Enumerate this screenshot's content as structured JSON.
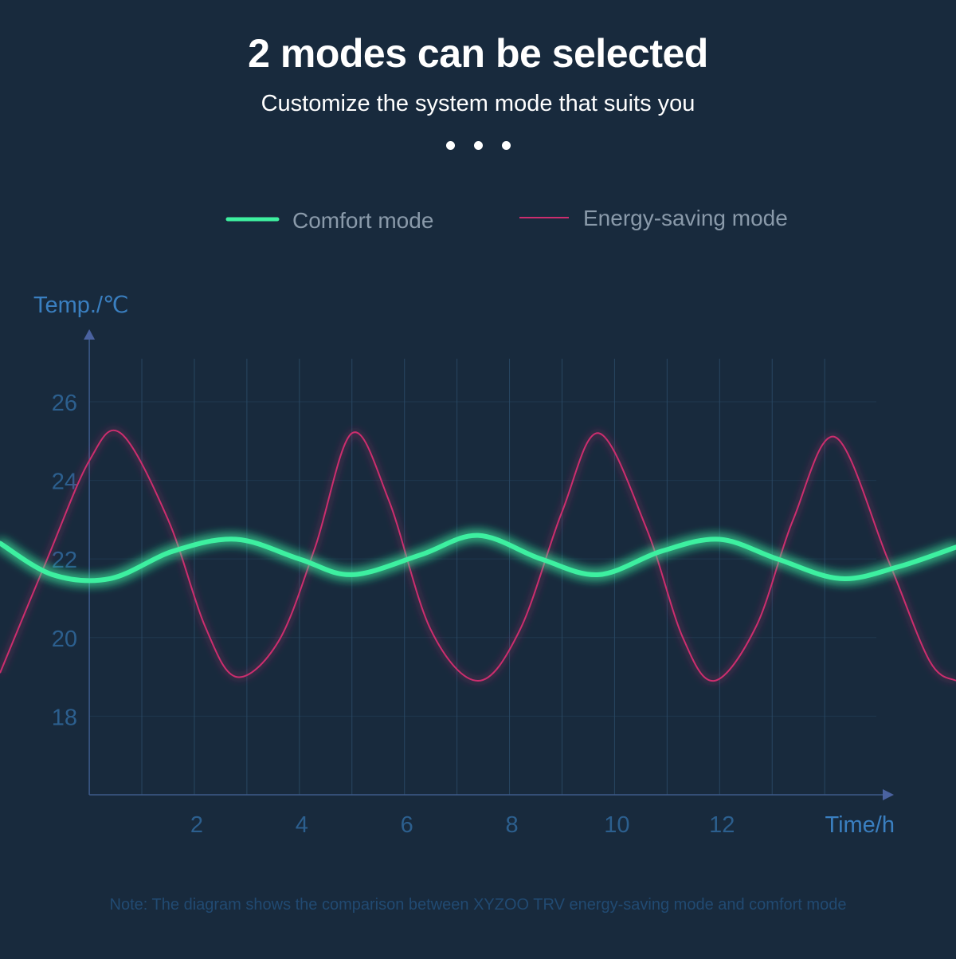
{
  "header": {
    "title": "2 modes can be selected",
    "subtitle": "Customize the system mode that suits you"
  },
  "colors": {
    "background": "#182a3d",
    "comfort": "#3ef0a0",
    "energy": "#cc2d6e",
    "axis_text": "#2c5f8e",
    "axis_label": "#3a7fc0",
    "grid": "#2a4a66"
  },
  "note": "Note: The diagram shows the comparison between XYZOO TRV energy-saving mode and comfort mode",
  "chart_data": {
    "type": "line",
    "ylabel": "Temp./℃",
    "xlabel": "Time/h",
    "xlim": [
      -1.7,
      16.5
    ],
    "ylim": [
      16,
      27.5
    ],
    "x_ticks": [
      2,
      4,
      6,
      8,
      10,
      12
    ],
    "y_ticks": [
      18,
      20,
      22,
      24,
      26
    ],
    "legend_position": "top-center",
    "series": [
      {
        "name": "Comfort mode",
        "color": "#3ef0a0",
        "points": [
          [
            -1.7,
            22.4
          ],
          [
            -0.7,
            21.6
          ],
          [
            0.4,
            21.5
          ],
          [
            1.6,
            22.2
          ],
          [
            2.8,
            22.5
          ],
          [
            4.0,
            22.0
          ],
          [
            5.0,
            21.6
          ],
          [
            6.3,
            22.1
          ],
          [
            7.4,
            22.6
          ],
          [
            8.6,
            22.0
          ],
          [
            9.7,
            21.6
          ],
          [
            10.9,
            22.2
          ],
          [
            12.0,
            22.5
          ],
          [
            13.1,
            22.0
          ],
          [
            14.3,
            21.5
          ],
          [
            15.4,
            21.8
          ],
          [
            16.5,
            22.3
          ]
        ]
      },
      {
        "name": "Energy-saving mode",
        "color": "#cc2d6e",
        "points": [
          [
            -1.7,
            19.1
          ],
          [
            -0.8,
            22.0
          ],
          [
            0.0,
            24.5
          ],
          [
            0.6,
            25.2
          ],
          [
            1.5,
            23.0
          ],
          [
            2.2,
            20.3
          ],
          [
            2.8,
            19.0
          ],
          [
            3.6,
            19.9
          ],
          [
            4.3,
            22.3
          ],
          [
            5.0,
            25.2
          ],
          [
            5.7,
            23.5
          ],
          [
            6.5,
            20.2
          ],
          [
            7.4,
            18.9
          ],
          [
            8.2,
            20.2
          ],
          [
            9.0,
            23.2
          ],
          [
            9.7,
            25.2
          ],
          [
            10.6,
            22.8
          ],
          [
            11.3,
            20.0
          ],
          [
            11.9,
            18.9
          ],
          [
            12.7,
            20.3
          ],
          [
            13.4,
            23.0
          ],
          [
            14.2,
            25.1
          ],
          [
            15.2,
            22.0
          ],
          [
            16.0,
            19.4
          ],
          [
            16.5,
            18.9
          ]
        ]
      }
    ]
  }
}
